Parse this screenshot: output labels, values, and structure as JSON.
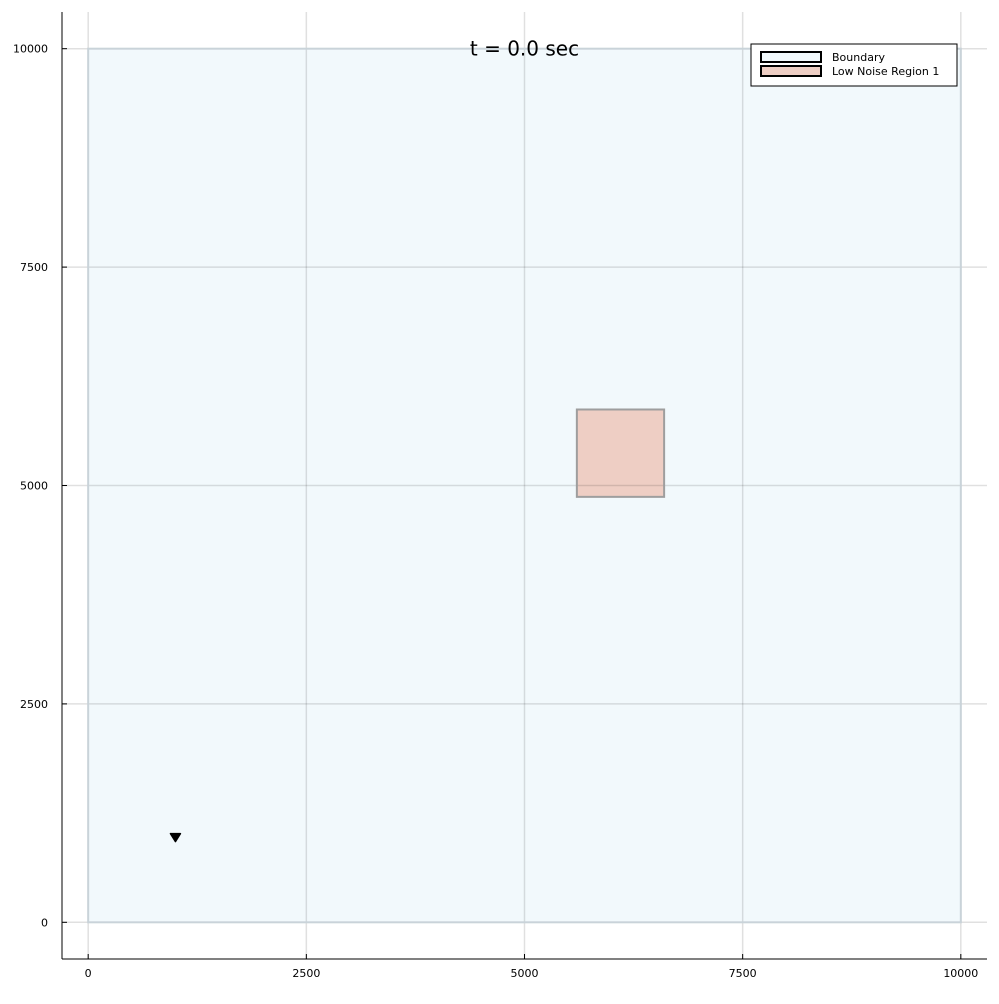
{
  "chart_data": {
    "type": "area",
    "title": "",
    "xlabel": "",
    "ylabel": "",
    "xlim": [
      -300,
      10300
    ],
    "ylim": [
      -420,
      10420
    ],
    "x_ticks": [
      0,
      2500,
      5000,
      7500,
      10000
    ],
    "y_ticks": [
      0,
      2500,
      5000,
      7500,
      10000
    ],
    "x_tick_labels": [
      "0",
      "2500",
      "5000",
      "7500",
      "10000"
    ],
    "y_tick_labels": [
      "0",
      "2500",
      "5000",
      "7500",
      "10000"
    ],
    "grid": true,
    "legend_position": "top-right",
    "annotation": {
      "text": "t = 0.0 sec",
      "x": 5000,
      "y": 10000
    },
    "series": [
      {
        "name": "Boundary",
        "shape": "rectangle",
        "x": [
          0,
          10000
        ],
        "y": [
          0,
          10000
        ],
        "fill": "#f2f9fc",
        "stroke": "#c9d3d9"
      },
      {
        "name": "Low Noise Region 1",
        "shape": "rectangle",
        "x": [
          5600,
          6600
        ],
        "y": [
          4870,
          5870
        ],
        "fill": "#eecec4",
        "stroke": "#9e9e9e"
      }
    ],
    "markers": [
      {
        "shape": "triangle",
        "x": 1000,
        "y": 970,
        "color": "#000000"
      }
    ]
  }
}
